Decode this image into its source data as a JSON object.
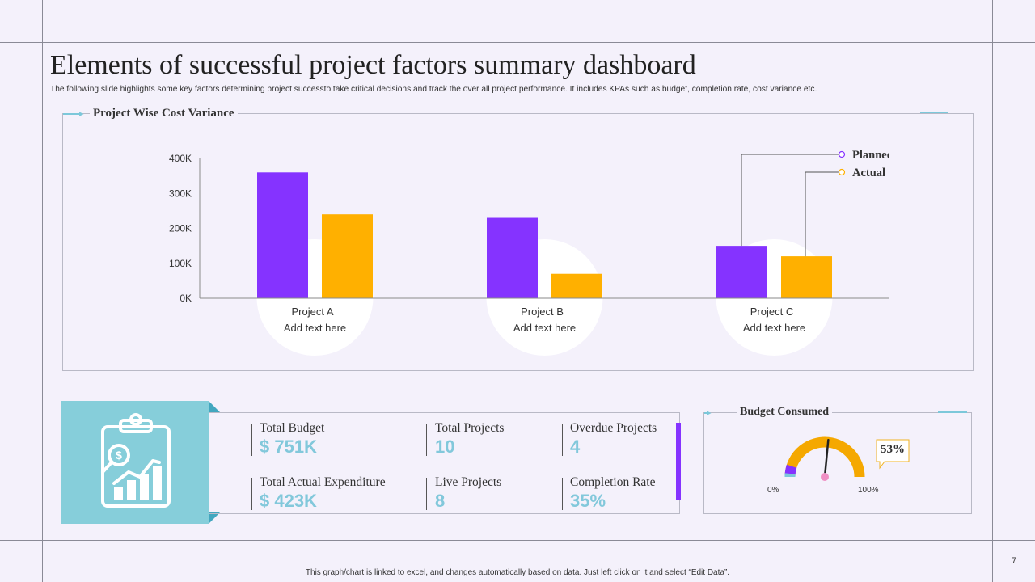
{
  "title": "Elements of successful project factors summary dashboard",
  "subtitle": "The following slide highlights some key factors determining project successto take critical decisions and track the over all project performance. It includes KPAs such as budget, completion rate, cost variance etc.",
  "chart_section_title": "Project Wise Cost Variance",
  "chart_data": {
    "type": "bar",
    "title": "Project Wise Cost Variance",
    "categories": [
      "Project A",
      "Project B",
      "Project C"
    ],
    "category_notes": [
      "Add text here",
      "Add text here",
      "Add text here"
    ],
    "series": [
      {
        "name": "Planned",
        "values": [
          360000,
          230000,
          150000
        ],
        "color": "#8533ff"
      },
      {
        "name": "Actual",
        "values": [
          240000,
          70000,
          120000
        ],
        "color": "#ffb000"
      }
    ],
    "y_ticks": [
      "0K",
      "100K",
      "200K",
      "300K",
      "400K"
    ],
    "ylim": [
      0,
      400000
    ],
    "legend_position": "top-right"
  },
  "kpis": {
    "total_budget": {
      "label": "Total Budget",
      "value": "$ 751K"
    },
    "total_projects": {
      "label": "Total Projects",
      "value": "10"
    },
    "overdue_projects": {
      "label": "Overdue Projects",
      "value": "4"
    },
    "total_actual_expenditure": {
      "label": "Total Actual Expenditure",
      "value": "$ 423K"
    },
    "live_projects": {
      "label": "Live Projects",
      "value": "8"
    },
    "completion_rate": {
      "label": "Completion Rate",
      "value": "35%"
    }
  },
  "budget": {
    "title": "Budget Consumed",
    "percent": 53,
    "percent_label": "53%",
    "min_label": "0%",
    "max_label": "100%"
  },
  "footer": "This graph/chart is linked to excel, and changes automatically based on data. Just left click on it and select “Edit Data”.",
  "page_number": "7",
  "colors": {
    "planned": "#8533ff",
    "actual": "#ffb000",
    "accent": "#82c8db",
    "background": "#f4f1fb"
  },
  "icons": {
    "kpi_card": "clipboard-chart-icon"
  }
}
